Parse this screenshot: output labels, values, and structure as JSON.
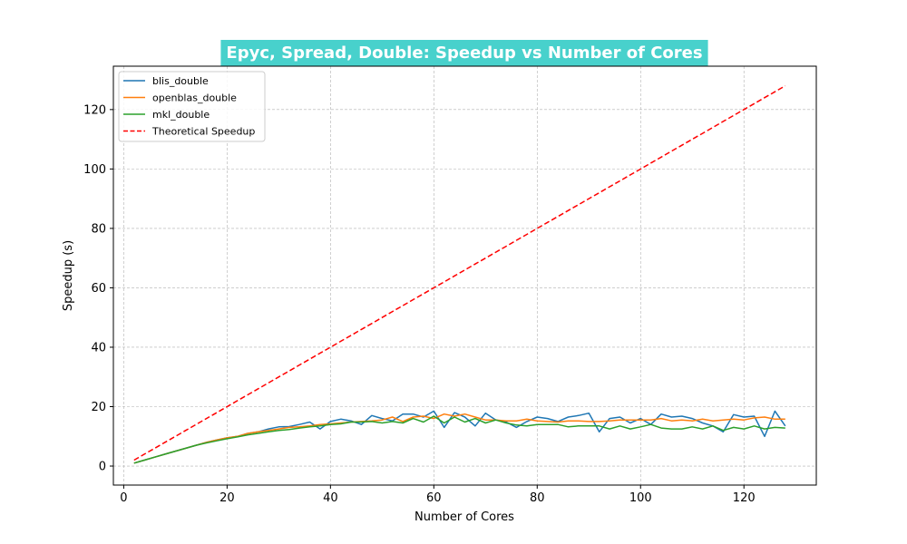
{
  "chart_data": {
    "type": "line",
    "title": "Epyc, Spread, Double: Speedup vs Number of Cores",
    "title_background": "#48d1cc",
    "xlabel": "Number of Cores",
    "ylabel": "Speedup (s)",
    "xlim": [
      -2,
      134
    ],
    "ylim": [
      -6.4,
      134.6
    ],
    "xticks": [
      0,
      20,
      40,
      60,
      80,
      100,
      120
    ],
    "yticks": [
      0,
      20,
      40,
      60,
      80,
      100,
      120
    ],
    "grid": true,
    "legend_position": "top-left",
    "x": [
      2,
      4,
      6,
      8,
      10,
      12,
      14,
      16,
      18,
      20,
      22,
      24,
      26,
      28,
      30,
      32,
      34,
      36,
      38,
      40,
      42,
      44,
      46,
      48,
      50,
      52,
      54,
      56,
      58,
      60,
      62,
      64,
      66,
      68,
      70,
      72,
      74,
      76,
      78,
      80,
      82,
      84,
      86,
      88,
      90,
      92,
      94,
      96,
      98,
      100,
      102,
      104,
      106,
      108,
      110,
      112,
      114,
      116,
      118,
      120,
      122,
      124,
      126,
      128
    ],
    "series": [
      {
        "name": "blis_double",
        "color": "#1f77b4",
        "style": "solid",
        "values": [
          1,
          2,
          3,
          4,
          5,
          6,
          7,
          8,
          8.8,
          9.5,
          10,
          11,
          11.5,
          12.5,
          13.2,
          13.3,
          14,
          14.8,
          12.5,
          15,
          15.8,
          15.2,
          14,
          17,
          16,
          15.2,
          17.5,
          17.5,
          16.5,
          18.5,
          13,
          18,
          16.5,
          13.5,
          17.8,
          15.5,
          14.8,
          13,
          15,
          16.5,
          16,
          15,
          16.5,
          17,
          17.8,
          11.5,
          16,
          16.5,
          14.5,
          16,
          14,
          17.5,
          16.5,
          16.8,
          16,
          14.5,
          13.5,
          11.5,
          17.3,
          16.5,
          16.8,
          10,
          18.5,
          13.5
        ]
      },
      {
        "name": "openblas_double",
        "color": "#ff7f0e",
        "style": "solid",
        "values": [
          1,
          2,
          3,
          4,
          5,
          6,
          7,
          8,
          8.8,
          9.5,
          10,
          11,
          11.5,
          12,
          12.5,
          13,
          13.2,
          13.5,
          14,
          14.2,
          14.5,
          14.8,
          15,
          15.2,
          15.5,
          16.5,
          15,
          16.5,
          16.8,
          16,
          17.5,
          16.8,
          17.5,
          16.5,
          15.5,
          15.5,
          15.2,
          15.2,
          15.8,
          15.2,
          15,
          14.8,
          15.2,
          15.2,
          15,
          15,
          15.2,
          15.5,
          15.5,
          15.5,
          15.5,
          16,
          15.2,
          15.5,
          15.2,
          15.8,
          15.2,
          15.5,
          15.8,
          15.5,
          16.2,
          16.5,
          15.8,
          15.8
        ]
      },
      {
        "name": "mkl_double",
        "color": "#2ca02c",
        "style": "solid",
        "values": [
          1,
          2,
          3,
          4,
          5,
          6,
          7,
          7.8,
          8.5,
          9.2,
          9.8,
          10.5,
          11,
          11.5,
          12,
          12.3,
          12.8,
          13.2,
          13.5,
          14,
          14.2,
          14.8,
          14.8,
          15,
          14.5,
          15,
          14.5,
          16,
          14.8,
          16.8,
          14.5,
          16.5,
          14.8,
          16,
          14.5,
          15.5,
          14.5,
          13.8,
          13.5,
          14,
          14,
          14,
          13.2,
          13.5,
          13.5,
          13.5,
          12.5,
          13.5,
          12.5,
          13.2,
          14,
          12.8,
          12.5,
          12.5,
          13.2,
          12.5,
          13.5,
          12,
          13,
          12.5,
          13.5,
          12.5,
          13,
          12.8
        ]
      },
      {
        "name": "Theoretical Speedup",
        "color": "#ff0000",
        "style": "dashed",
        "values": [
          2,
          4,
          6,
          8,
          10,
          12,
          14,
          16,
          18,
          20,
          22,
          24,
          26,
          28,
          30,
          32,
          34,
          36,
          38,
          40,
          42,
          44,
          46,
          48,
          50,
          52,
          54,
          56,
          58,
          60,
          62,
          64,
          66,
          68,
          70,
          72,
          74,
          76,
          78,
          80,
          82,
          84,
          86,
          88,
          90,
          92,
          94,
          96,
          98,
          100,
          102,
          104,
          106,
          108,
          110,
          112,
          114,
          116,
          118,
          120,
          122,
          124,
          126,
          128
        ]
      }
    ]
  }
}
